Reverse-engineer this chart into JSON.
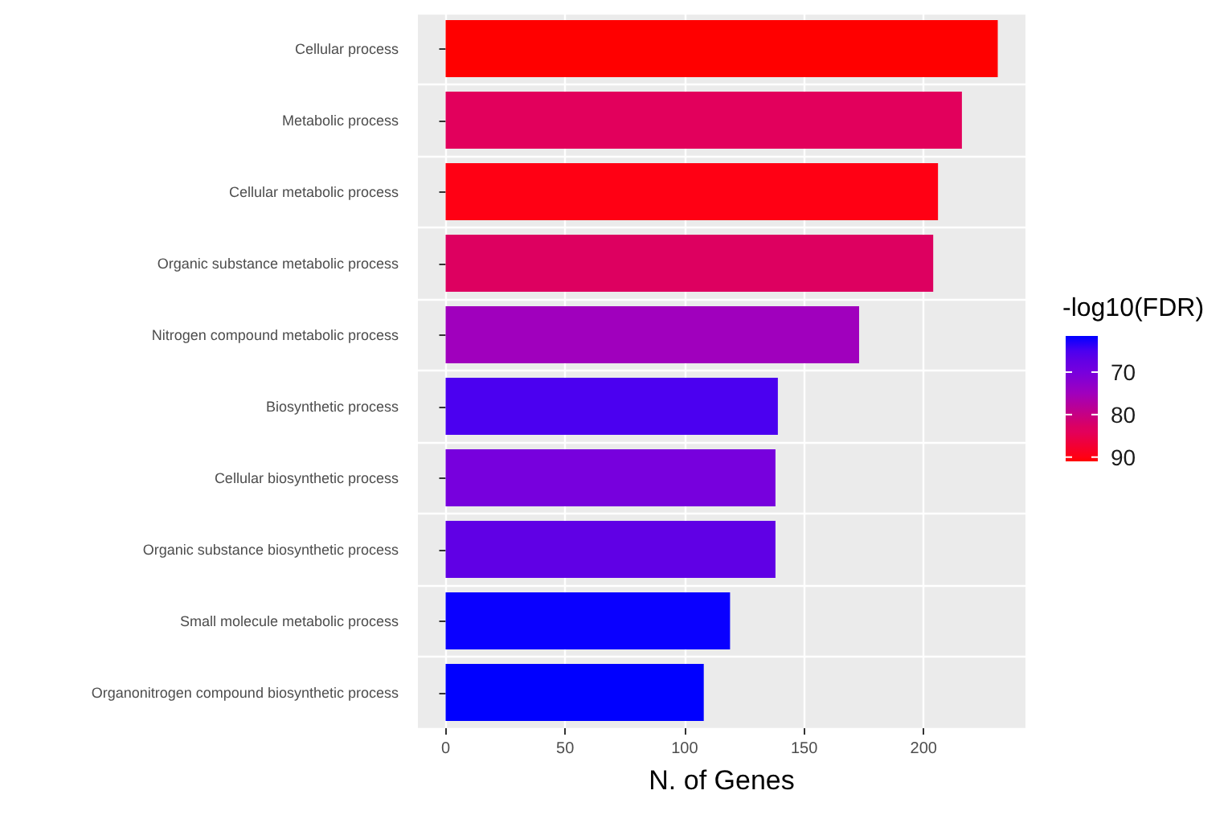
{
  "chart_data": {
    "type": "bar",
    "orientation": "horizontal",
    "xlabel": "N. of Genes",
    "clabel": "-log10(FDR)",
    "categories": [
      "Cellular process",
      "Metabolic process",
      "Cellular metabolic process",
      "Organic substance metabolic process",
      "Nitrogen compound metabolic process",
      "Biosynthetic process",
      "Cellular biosynthetic process",
      "Organic substance biosynthetic process",
      "Small molecule metabolic process",
      "Organonitrogen compound biosynthetic process"
    ],
    "values": [
      231,
      216,
      206,
      204,
      173,
      139,
      138,
      138,
      119,
      108
    ],
    "cvalues": [
      91,
      84,
      90,
      83,
      75,
      65,
      70,
      67,
      62,
      61.5
    ],
    "colors": [
      "#ff0000",
      "#e2005c",
      "#ff0014",
      "#dd0060",
      "#a000bd",
      "#4b00f0",
      "#7700dd",
      "#6000e5",
      "#0a00ff",
      "#0000ff"
    ],
    "clim": [
      61.5,
      91
    ],
    "cticks": [
      70,
      80,
      90
    ],
    "xlim": [
      -11.6,
      242.6
    ],
    "xticks": [
      0,
      50,
      100,
      150,
      200
    ],
    "grid": true
  }
}
